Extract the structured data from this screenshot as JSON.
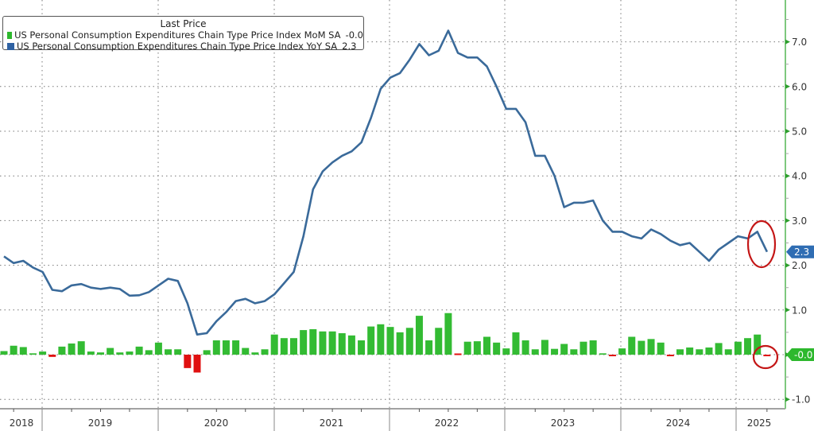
{
  "legend": {
    "title": "Last Price",
    "items": [
      {
        "label": "US Personal Consumption Expenditures Chain Type Price Index MoM SA",
        "value": "-0.0",
        "color": "#2db82d"
      },
      {
        "label": "US Personal Consumption Expenditures Chain Type Price Index YoY SA",
        "value": "2.3",
        "color": "#2f62a3"
      }
    ]
  },
  "axis": {
    "y_ticks": [
      "7.0",
      "6.0",
      "5.0",
      "4.0",
      "3.0",
      "2.0",
      "1.0",
      "-0.0",
      "-1.0"
    ],
    "year_labels": [
      "2018",
      "2019",
      "2020",
      "2021",
      "2022",
      "2023",
      "2024",
      "2025"
    ],
    "last_value_labels": {
      "yoy": "2.3",
      "mom": "-0.0"
    }
  },
  "colors": {
    "line": "#3a6a9a",
    "bar_pos": "#33bb33",
    "bar_neg": "#e01010",
    "axis": "#7ec87e",
    "yoy_tag": "#2f6db3",
    "mom_tag": "#2db82d",
    "annotation": "#c41616"
  },
  "chart_data": {
    "type": "bar+line",
    "title": "",
    "xlabel": "",
    "ylabel": "",
    "ylim": [
      -1.1,
      7.9
    ],
    "grid": true,
    "legend_position": "top-left",
    "x_start": "2018-09",
    "x_end": "2025-04",
    "frequency": "monthly",
    "series": [
      {
        "name": "US Personal Consumption Expenditures Chain Type Price Index YoY SA",
        "type": "line",
        "last": 2.3,
        "values": [
          2.2,
          2.05,
          2.1,
          1.95,
          1.85,
          1.45,
          1.42,
          1.55,
          1.58,
          1.5,
          1.47,
          1.5,
          1.47,
          1.32,
          1.33,
          1.4,
          1.55,
          1.7,
          1.65,
          1.15,
          0.45,
          0.48,
          0.75,
          0.95,
          1.2,
          1.25,
          1.15,
          1.2,
          1.35,
          1.6,
          1.85,
          2.65,
          3.7,
          4.1,
          4.3,
          4.45,
          4.55,
          4.75,
          5.3,
          5.95,
          6.2,
          6.3,
          6.6,
          6.95,
          6.7,
          6.8,
          7.25,
          6.75,
          6.65,
          6.65,
          6.45,
          6.0,
          5.5,
          5.5,
          5.2,
          4.45,
          4.45,
          4.0,
          3.3,
          3.4,
          3.4,
          3.45,
          3.0,
          2.75,
          2.75,
          2.65,
          2.6,
          2.8,
          2.7,
          2.55,
          2.45,
          2.5,
          2.3,
          2.1,
          2.35,
          2.5,
          2.65,
          2.6,
          2.75,
          2.3
        ]
      },
      {
        "name": "US Personal Consumption Expenditures Chain Type Price Index MoM SA",
        "type": "bar",
        "last": -0.0,
        "values": [
          0.08,
          0.2,
          0.17,
          0.03,
          0.07,
          -0.05,
          0.18,
          0.25,
          0.3,
          0.07,
          0.05,
          0.15,
          0.05,
          0.07,
          0.18,
          0.1,
          0.27,
          0.12,
          0.12,
          -0.3,
          -0.4,
          0.1,
          0.32,
          0.32,
          0.32,
          0.15,
          0.05,
          0.12,
          0.45,
          0.37,
          0.37,
          0.55,
          0.57,
          0.52,
          0.52,
          0.48,
          0.43,
          0.32,
          0.63,
          0.68,
          0.62,
          0.5,
          0.6,
          0.87,
          0.32,
          0.6,
          0.93,
          0.02,
          0.29,
          0.3,
          0.4,
          0.27,
          0.14,
          0.5,
          0.32,
          0.12,
          0.33,
          0.13,
          0.24,
          0.12,
          0.29,
          0.32,
          0.03,
          -0.01,
          0.14,
          0.4,
          0.31,
          0.35,
          0.27,
          -0.01,
          0.12,
          0.16,
          0.12,
          0.16,
          0.26,
          0.12,
          0.29,
          0.37,
          0.45,
          -0.02
        ]
      }
    ],
    "annotations": [
      {
        "type": "ellipse",
        "target": "YoY last points (Feb-Apr 2025)",
        "color": "#c41616"
      },
      {
        "type": "ellipse",
        "target": "MoM last bar (Apr 2025)",
        "color": "#c41616"
      }
    ]
  }
}
